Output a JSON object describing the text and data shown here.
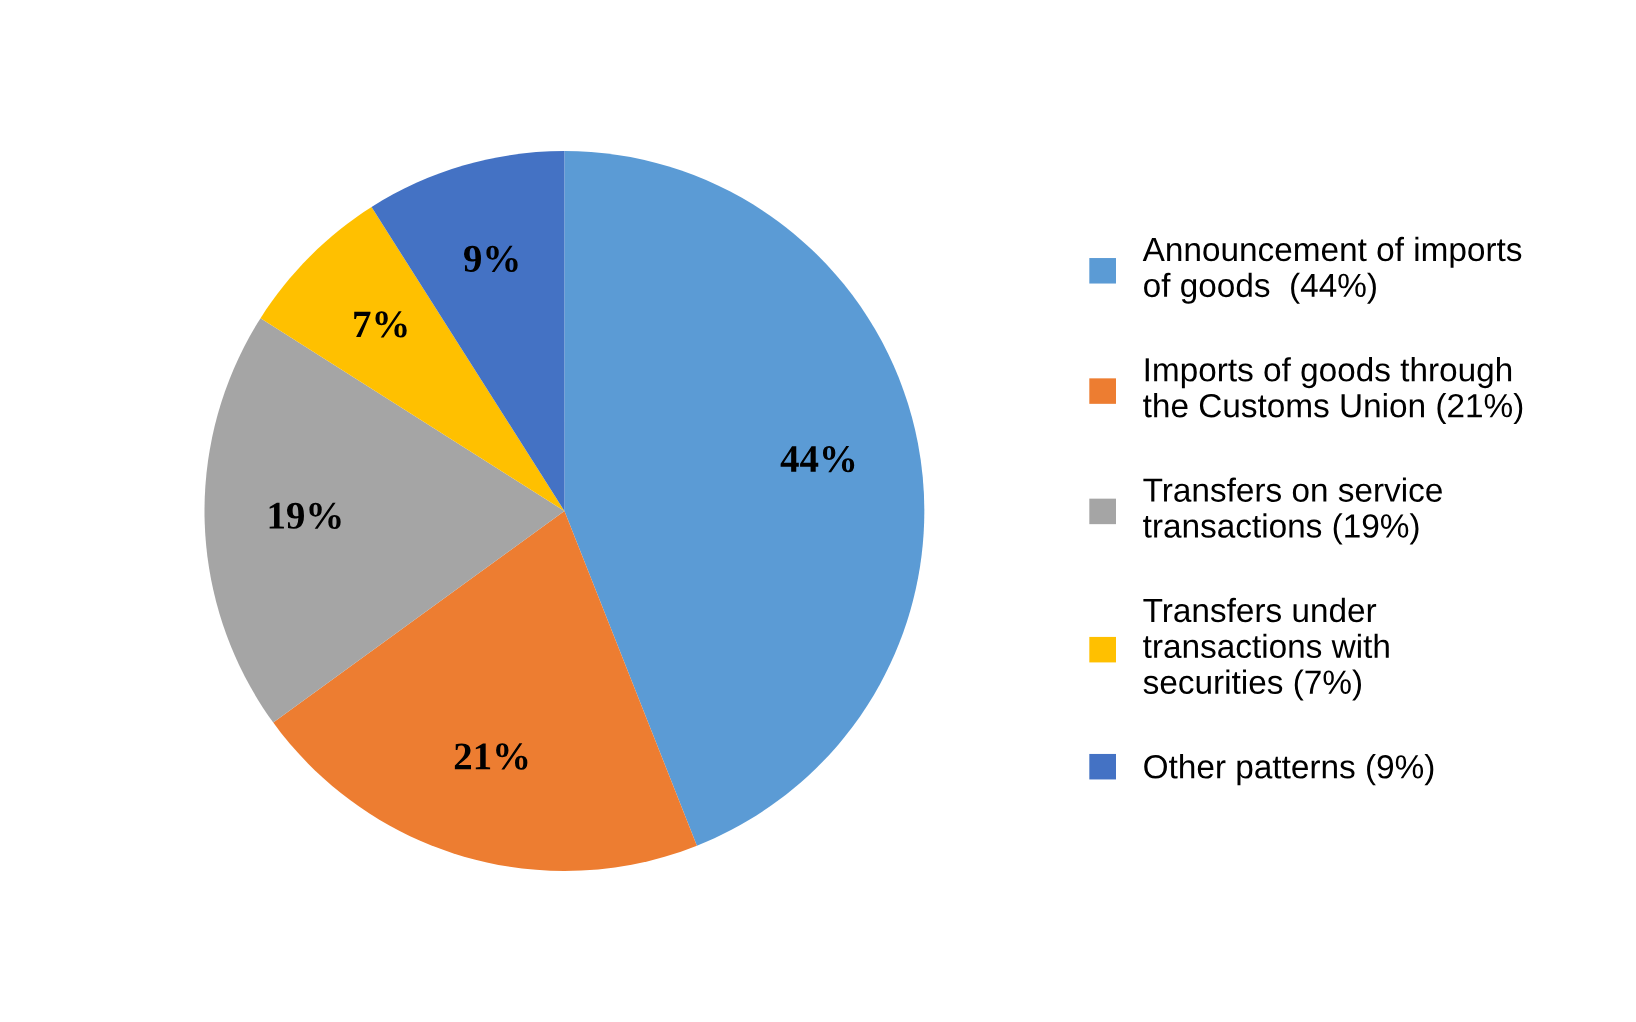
{
  "chart_data": {
    "type": "pie",
    "categories": [
      "Announcement of imports\nof goods  (44%)",
      "Imports of goods through\nthe Customs Union (21%)",
      "Transfers on service\ntransactions (19%)",
      "Transfers under\ntransactions with\nsecurities (7%)",
      "Other patterns (9%)"
    ],
    "values": [
      44,
      21,
      19,
      7,
      9
    ],
    "colors": [
      "#5b9bd5",
      "#ed7d31",
      "#a5a5a5",
      "#ffc000",
      "#4472c4"
    ],
    "value_labels": [
      "44%",
      "21%",
      "19%",
      "7%",
      "9%"
    ],
    "legend": "right"
  }
}
